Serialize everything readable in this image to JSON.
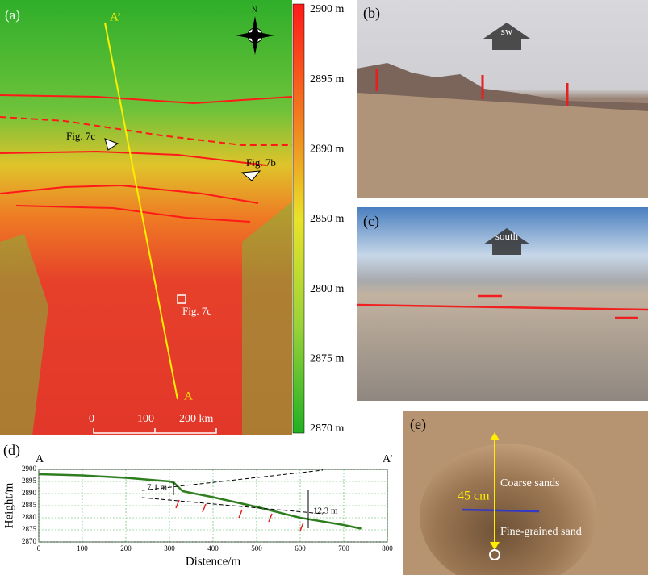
{
  "panel_a": {
    "label": "(a)",
    "section_start": "A’",
    "section_end": "A",
    "north": "N",
    "fig_label_1": "Fig. 7c",
    "fig_label_2": "Fig. 7b",
    "fig_label_3": "Fig. 7c",
    "scale_ticks": [
      "0",
      "100",
      "200 km"
    ],
    "colorbar_ticks": [
      "2900 m",
      "2895 m",
      "2890 m",
      "2850 m",
      "2800 m",
      "2875 m",
      "2870 m"
    ]
  },
  "panel_b": {
    "label": "(b)",
    "direction": "sw"
  },
  "panel_c": {
    "label": "(c)",
    "direction": "south"
  },
  "panel_e": {
    "label": "(e)",
    "depth": "45 cm",
    "upper_layer": "Coarse sands",
    "lower_layer": "Fine-grained sand"
  },
  "chart_data": {
    "type": "line",
    "label": "(d)",
    "start_label": "A",
    "end_label": "A’",
    "x_label": "Distence/m",
    "y_label": "Height/m",
    "x": [
      0,
      100,
      200,
      300,
      310,
      330,
      400,
      500,
      600,
      700,
      740
    ],
    "series": [
      {
        "name": "profile",
        "color": "#2e7d1e",
        "values": [
          2898,
          2897.5,
          2896.5,
          2895,
          2894.5,
          2891,
          2888.5,
          2884.5,
          2880,
          2877,
          2875.5
        ]
      }
    ],
    "xlim": [
      0,
      800
    ],
    "xticks": [
      0,
      100,
      200,
      300,
      400,
      500,
      600,
      700,
      800
    ],
    "ylim": [
      2870,
      2900
    ],
    "yticks": [
      2870,
      2875,
      2880,
      2885,
      2890,
      2895,
      2900
    ],
    "annotation_1": "7.1 m",
    "annotation_2": "12.3 m",
    "grid": true
  }
}
